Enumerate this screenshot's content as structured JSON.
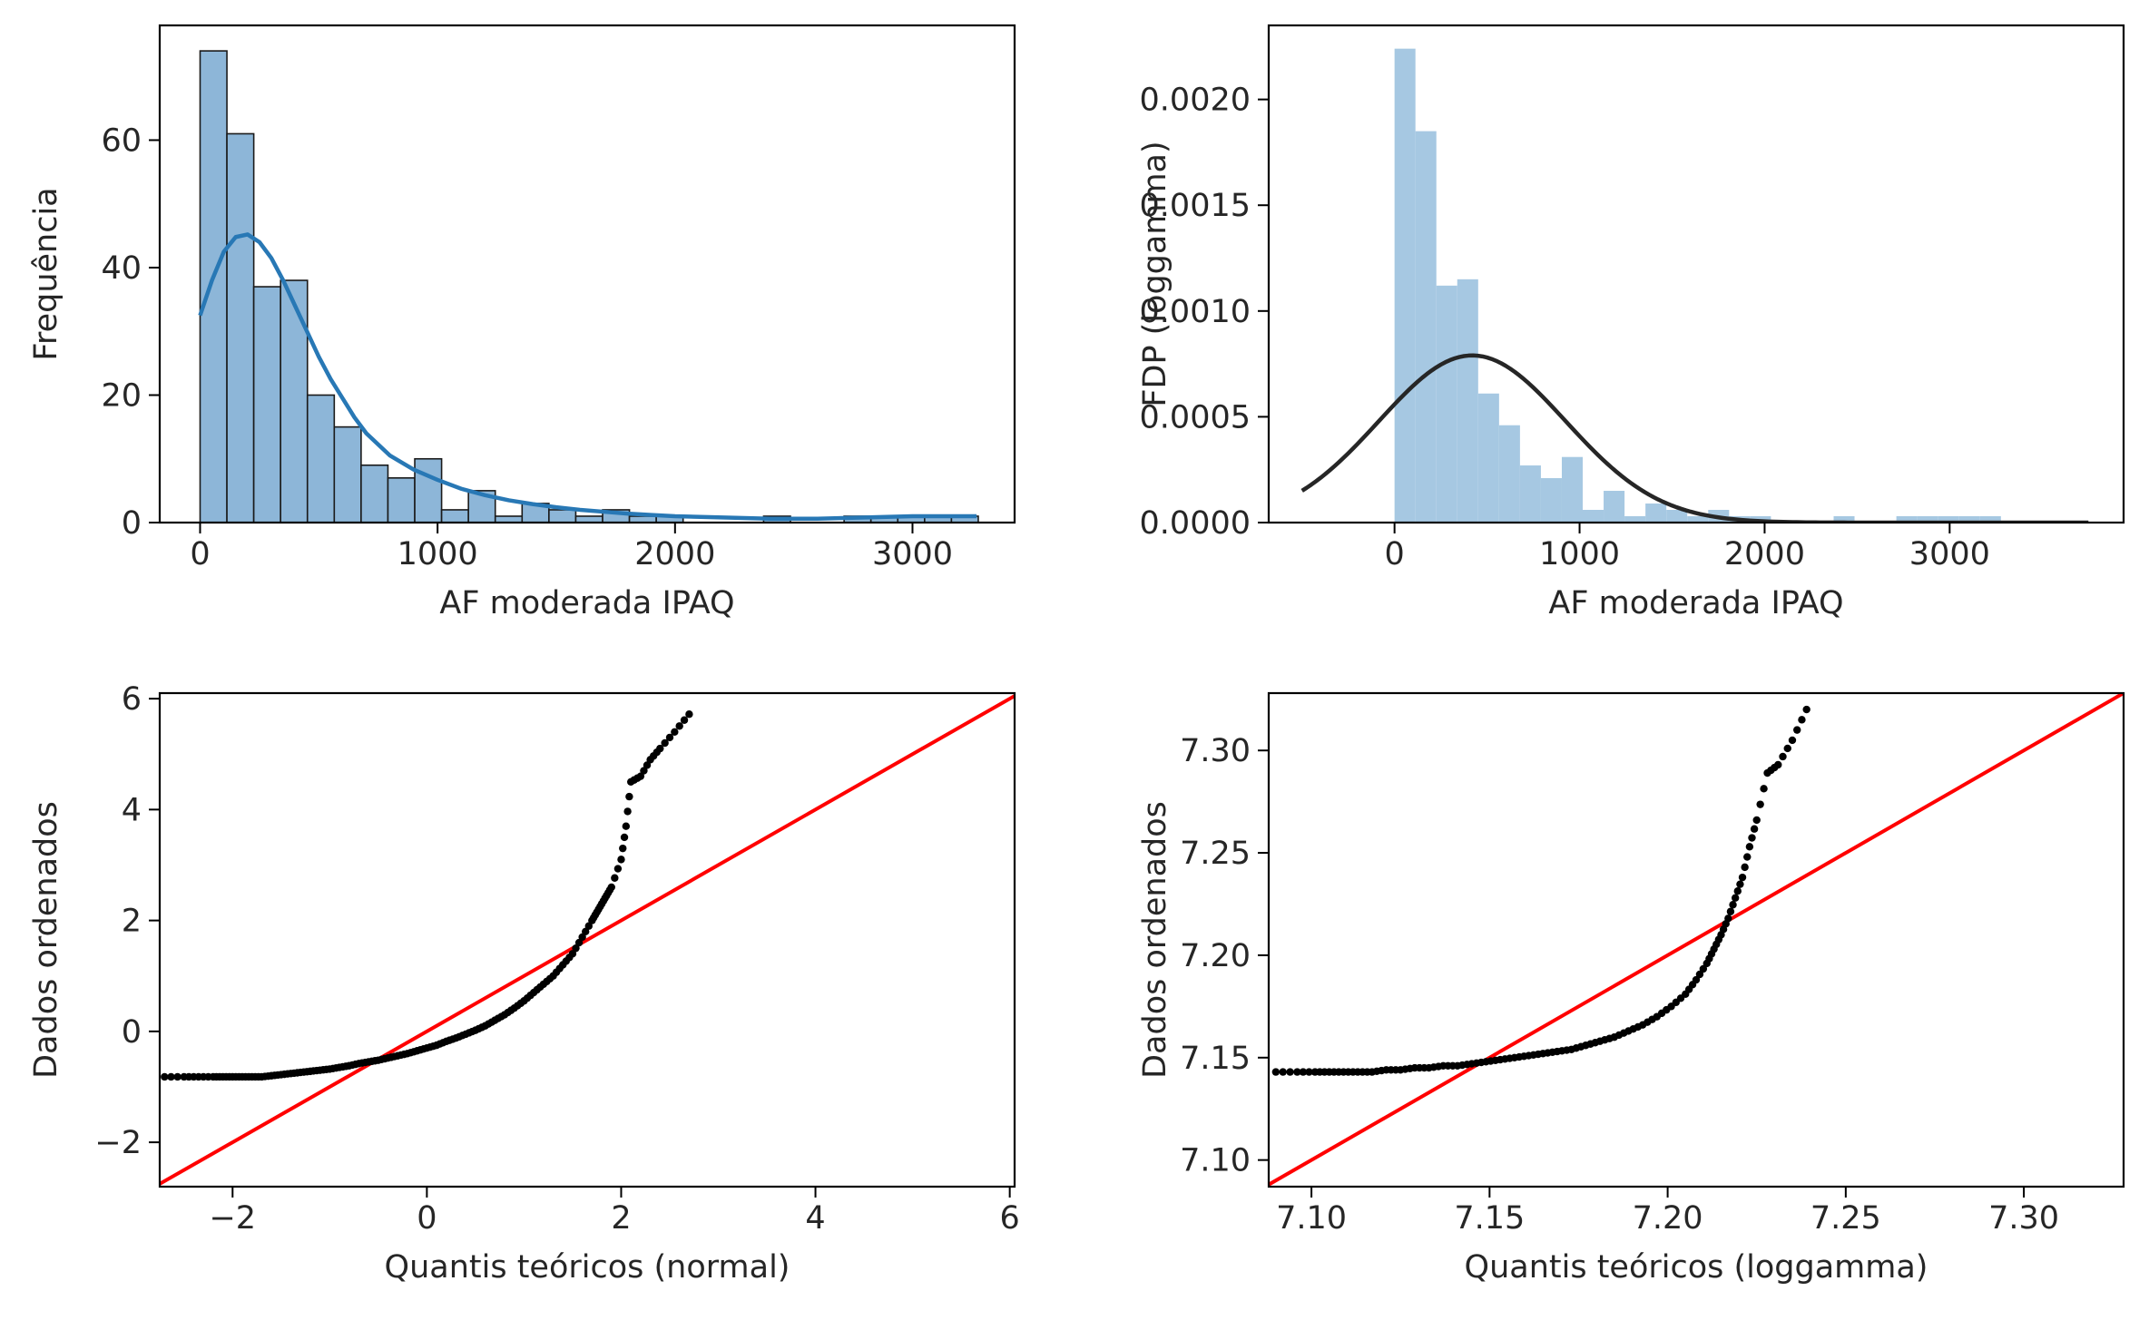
{
  "chart_data": [
    {
      "id": "hist_counts",
      "type": "bar",
      "xlabel": "AF moderada IPAQ",
      "ylabel": "Frequência",
      "xlim": [
        -170,
        3430
      ],
      "ylim": [
        0,
        78
      ],
      "xticks": [
        "0",
        "1000",
        "2000",
        "3000"
      ],
      "yticks": [
        "0",
        "20",
        "40",
        "60"
      ],
      "xtick_values": [
        0,
        1000,
        2000,
        3000
      ],
      "ytick_values": [
        0,
        20,
        40,
        60
      ],
      "bar_color": "#8db6d8",
      "edge_color": "#1a1a1a",
      "bins_start": 0,
      "bin_width": 113,
      "values": [
        74,
        61,
        37,
        38,
        20,
        15,
        9,
        7,
        10,
        2,
        5,
        1,
        3,
        2,
        1,
        2,
        1,
        1,
        0,
        0,
        0,
        1,
        0,
        0,
        1,
        1,
        1,
        1,
        1
      ],
      "kde_color": "#2878b5",
      "kde": {
        "x": [
          0,
          50,
          100,
          150,
          200,
          250,
          300,
          350,
          400,
          450,
          500,
          550,
          600,
          650,
          700,
          800,
          900,
          1000,
          1100,
          1200,
          1300,
          1400,
          1500,
          1600,
          1700,
          1800,
          1900,
          2000,
          2200,
          2400,
          2600,
          2800,
          3000,
          3270
        ],
        "y": [
          32.5,
          38,
          42.5,
          44.8,
          45.2,
          44,
          41.5,
          38,
          34,
          30,
          26,
          22.5,
          19.5,
          16.5,
          14,
          10.5,
          8.3,
          6.7,
          5.3,
          4.3,
          3.5,
          2.9,
          2.4,
          2,
          1.7,
          1.4,
          1.2,
          1,
          0.8,
          0.6,
          0.6,
          0.8,
          1,
          1
        ]
      }
    },
    {
      "id": "hist_density",
      "type": "bar",
      "xlabel": "AF moderada IPAQ",
      "ylabel": "FDP (loggamma)",
      "xlim": [
        -680,
        3940
      ],
      "ylim": [
        0,
        0.00235
      ],
      "xticks": [
        "0",
        "1000",
        "2000",
        "3000"
      ],
      "yticks": [
        "0.0000",
        "0.0005",
        "0.0010",
        "0.0015",
        "0.0020"
      ],
      "xtick_values": [
        0,
        1000,
        2000,
        3000
      ],
      "ytick_values": [
        0,
        0.0005,
        0.001,
        0.0015,
        0.002
      ],
      "bar_color": "#a6c8e2",
      "bins_start": 0,
      "bin_width": 113,
      "values": [
        0.00224,
        0.00185,
        0.00112,
        0.00115,
        0.00061,
        0.00046,
        0.00027,
        0.00021,
        0.00031,
        6e-05,
        0.00015,
        3e-05,
        9e-05,
        6e-05,
        3e-05,
        6e-05,
        3e-05,
        3e-05,
        0,
        0,
        0,
        3e-05,
        0,
        0,
        3e-05,
        3e-05,
        3e-05,
        3e-05,
        3e-05
      ],
      "pdf_color": "#262626",
      "pdf": {
        "mean": 420,
        "sd": 505,
        "peak": 0.00079,
        "x_range": [
          -500,
          3750
        ]
      }
    },
    {
      "id": "qq_normal",
      "type": "scatter",
      "xlabel": "Quantis teóricos (normal)",
      "ylabel": "Dados ordenados",
      "xlim": [
        -2.75,
        6.05
      ],
      "ylim": [
        -2.8,
        6.1
      ],
      "xticks": [
        "−2",
        "0",
        "2",
        "4",
        "6"
      ],
      "yticks": [
        "−2",
        "0",
        "2",
        "4",
        "6"
      ],
      "xtick_values": [
        -2,
        0,
        2,
        4,
        6
      ],
      "ytick_values": [
        -2,
        0,
        2,
        4,
        6
      ],
      "point_color": "#000000",
      "line_color": "#ff0000",
      "line": {
        "slope": 1,
        "intercept": 0
      },
      "points": {
        "x": [
          -2.7,
          -2.5,
          -2.35,
          -2.2,
          -2.1,
          -2.0,
          -1.9,
          -1.8,
          -1.7,
          -1.6,
          -1.5,
          -1.4,
          -1.3,
          -1.2,
          -1.1,
          -1.0,
          -0.9,
          -0.8,
          -0.7,
          -0.6,
          -0.5,
          -0.4,
          -0.3,
          -0.2,
          -0.1,
          0.0,
          0.1,
          0.2,
          0.3,
          0.4,
          0.5,
          0.6,
          0.7,
          0.8,
          0.9,
          1.0,
          1.1,
          1.2,
          1.3,
          1.4,
          1.5,
          1.6,
          1.7,
          1.75,
          1.8,
          1.85,
          1.9,
          2.0,
          2.05,
          2.1,
          2.2,
          2.3,
          2.4,
          2.55,
          2.7
        ],
        "y": [
          -0.82,
          -0.82,
          -0.82,
          -0.82,
          -0.82,
          -0.82,
          -0.82,
          -0.82,
          -0.82,
          -0.8,
          -0.78,
          -0.76,
          -0.74,
          -0.72,
          -0.7,
          -0.68,
          -0.65,
          -0.62,
          -0.58,
          -0.55,
          -0.52,
          -0.48,
          -0.44,
          -0.4,
          -0.35,
          -0.3,
          -0.25,
          -0.18,
          -0.12,
          -0.05,
          0.02,
          0.1,
          0.2,
          0.3,
          0.42,
          0.55,
          0.7,
          0.85,
          1.0,
          1.2,
          1.4,
          1.7,
          2.0,
          2.15,
          2.3,
          2.45,
          2.6,
          3.1,
          3.7,
          4.5,
          4.6,
          4.9,
          5.1,
          5.4,
          5.72
        ]
      }
    },
    {
      "id": "qq_loggamma",
      "type": "scatter",
      "xlabel": "Quantis teóricos (loggamma)",
      "ylabel": "Dados ordenados",
      "xlim": [
        7.088,
        7.328
      ],
      "ylim": [
        7.087,
        7.328
      ],
      "xticks": [
        "7.10",
        "7.15",
        "7.20",
        "7.25",
        "7.30"
      ],
      "yticks": [
        "7.10",
        "7.15",
        "7.20",
        "7.25",
        "7.30"
      ],
      "xtick_values": [
        7.1,
        7.15,
        7.2,
        7.25,
        7.3
      ],
      "ytick_values": [
        7.1,
        7.15,
        7.2,
        7.25,
        7.3
      ],
      "point_color": "#000000",
      "line_color": "#ff0000",
      "line": {
        "slope": 1,
        "intercept": 0
      },
      "points": {
        "x": [
          7.09,
          7.096,
          7.101,
          7.105,
          7.109,
          7.113,
          7.117,
          7.121,
          7.125,
          7.129,
          7.133,
          7.137,
          7.141,
          7.145,
          7.149,
          7.153,
          7.157,
          7.161,
          7.165,
          7.169,
          7.173,
          7.177,
          7.181,
          7.185,
          7.189,
          7.193,
          7.197,
          7.201,
          7.205,
          7.208,
          7.211,
          7.213,
          7.215,
          7.217,
          7.219,
          7.221,
          7.223,
          7.225,
          7.228,
          7.231,
          7.235,
          7.239
        ],
        "y": [
          7.143,
          7.143,
          7.143,
          7.143,
          7.143,
          7.143,
          7.143,
          7.144,
          7.144,
          7.145,
          7.145,
          7.146,
          7.146,
          7.147,
          7.148,
          7.149,
          7.15,
          7.151,
          7.152,
          7.153,
          7.154,
          7.156,
          7.158,
          7.16,
          7.163,
          7.166,
          7.17,
          7.175,
          7.181,
          7.188,
          7.196,
          7.203,
          7.21,
          7.218,
          7.228,
          7.238,
          7.253,
          7.266,
          7.289,
          7.293,
          7.305,
          7.32
        ]
      }
    }
  ]
}
